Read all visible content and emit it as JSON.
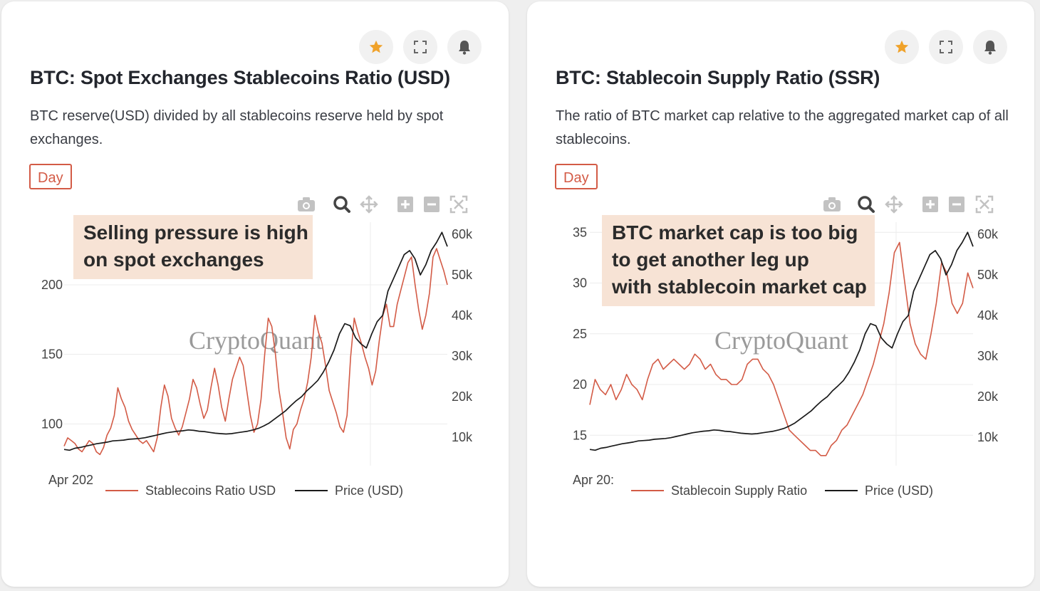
{
  "colors": {
    "accent": "#d35b46",
    "price": "#1a1a1a",
    "star": "#f0a22a",
    "annotation_bg": "#f7e3d5"
  },
  "icons": [
    "star-icon",
    "expand-icon",
    "bell-icon",
    "camera-icon",
    "zoom-icon",
    "pan-icon",
    "zoom-in-icon",
    "zoom-out-icon",
    "autoscale-icon"
  ],
  "cards": [
    {
      "title": "BTC: Spot Exchanges Stablecoins Ratio (USD)",
      "description": "BTC reserve(USD) divided by all stablecoins reserve held by spot exchanges.",
      "interval": "Day",
      "annotation": [
        "Selling pressure is high",
        "on spot exchanges"
      ],
      "watermark": "CryptoQuant",
      "x_first_tick": "Apr 202",
      "legend": [
        "Stablecoins Ratio USD",
        "Price (USD)"
      ],
      "y_left_ticks": [
        "100",
        "150",
        "200"
      ],
      "y_right_ticks": [
        "10k",
        "20k",
        "30k",
        "40k",
        "50k",
        "60k"
      ]
    },
    {
      "title": "BTC: Stablecoin Supply Ratio (SSR)",
      "description": "The ratio of BTC market cap relative to the aggregated market cap of all stablecoins.",
      "interval": "Day",
      "annotation": [
        "BTC market cap is too big",
        "to get another leg up",
        "with stablecoin market cap"
      ],
      "watermark": "CryptoQuant",
      "x_first_tick": "Apr 20:",
      "legend": [
        "Stablecoin Supply Ratio",
        "Price (USD)"
      ],
      "y_left_ticks": [
        "15",
        "20",
        "25",
        "30",
        "35"
      ],
      "y_right_ticks": [
        "10k",
        "20k",
        "30k",
        "40k",
        "50k",
        "60k"
      ]
    }
  ],
  "chart_data": [
    {
      "type": "line",
      "title": "BTC: Spot Exchanges Stablecoins Ratio (USD)",
      "x_first_tick": "Apr 202",
      "y_left": {
        "ticks": [
          100,
          150,
          200
        ],
        "range": [
          70,
          245
        ]
      },
      "y_right": {
        "ticks": [
          10000,
          20000,
          30000,
          40000,
          50000,
          60000
        ],
        "range": [
          3000,
          63000
        ]
      },
      "series": [
        {
          "name": "Stablecoins Ratio USD",
          "axis": "left",
          "color": "#d35b46",
          "values": [
            84,
            90,
            88,
            86,
            82,
            80,
            84,
            88,
            86,
            80,
            78,
            83,
            92,
            97,
            106,
            126,
            118,
            112,
            102,
            96,
            92,
            88,
            86,
            88,
            84,
            80,
            90,
            112,
            128,
            120,
            104,
            97,
            92,
            98,
            108,
            118,
            132,
            126,
            114,
            104,
            110,
            126,
            140,
            128,
            112,
            102,
            118,
            132,
            140,
            148,
            142,
            124,
            106,
            94,
            100,
            118,
            150,
            176,
            170,
            150,
            124,
            108,
            90,
            82,
            96,
            100,
            110,
            118,
            130,
            148,
            178,
            166,
            158,
            142,
            124,
            116,
            108,
            98,
            94,
            106,
            148,
            176,
            166,
            158,
            148,
            140,
            128,
            138,
            160,
            178,
            186,
            170,
            170,
            186,
            196,
            206,
            216,
            220,
            200,
            182,
            168,
            178,
            194,
            220,
            226,
            218,
            210,
            200
          ]
        },
        {
          "name": "Price (USD)",
          "axis": "right",
          "color": "#1a1a1a",
          "values": [
            7000,
            6800,
            7300,
            7500,
            7800,
            8100,
            8400,
            8600,
            8800,
            9100,
            9200,
            9300,
            9500,
            9600,
            9700,
            9900,
            10200,
            10500,
            10800,
            11100,
            11300,
            11500,
            11600,
            11800,
            11700,
            11500,
            11400,
            11200,
            11000,
            10900,
            10800,
            10900,
            11100,
            11300,
            11500,
            11800,
            12200,
            12800,
            13500,
            14500,
            15500,
            16500,
            17800,
            19000,
            20000,
            21500,
            22700,
            24000,
            26000,
            28500,
            31500,
            35500,
            38000,
            37500,
            34500,
            33000,
            32000,
            35500,
            38500,
            40000,
            46000,
            49000,
            52000,
            55000,
            56000,
            54000,
            50000,
            52500,
            56000,
            58000,
            60500,
            57000
          ]
        }
      ]
    },
    {
      "type": "line",
      "title": "BTC: Stablecoin Supply Ratio (SSR)",
      "x_first_tick": "Apr 20:",
      "y_left": {
        "ticks": [
          15,
          20,
          25,
          30,
          35
        ],
        "range": [
          12,
          36
        ]
      },
      "y_right": {
        "ticks": [
          10000,
          20000,
          30000,
          40000,
          50000,
          60000
        ],
        "range": [
          3000,
          63000
        ]
      },
      "series": [
        {
          "name": "Stablecoin Supply Ratio",
          "axis": "left",
          "color": "#d35b46",
          "values": [
            18,
            20.5,
            19.5,
            19,
            20,
            18.5,
            19.5,
            21,
            20,
            19.5,
            18.5,
            20.5,
            22,
            22.5,
            21.5,
            22,
            22.5,
            22,
            21.5,
            22,
            23,
            22.5,
            21.5,
            22,
            21,
            20.5,
            20.5,
            20,
            20,
            20.5,
            22,
            22.5,
            22.5,
            21.5,
            21,
            20,
            18.5,
            17,
            15.5,
            15,
            14.5,
            14,
            13.5,
            13.5,
            13,
            13,
            14,
            14.5,
            15.5,
            16,
            17,
            18,
            19,
            20.5,
            22,
            24,
            26,
            29,
            33,
            34,
            30,
            26,
            24,
            23,
            22.5,
            25,
            28,
            32,
            31,
            28,
            27,
            28,
            31,
            29.5
          ]
        },
        {
          "name": "Price (USD)",
          "axis": "right",
          "color": "#1a1a1a",
          "values": [
            7000,
            6800,
            7300,
            7500,
            7800,
            8100,
            8400,
            8600,
            8800,
            9100,
            9200,
            9300,
            9500,
            9600,
            9700,
            9900,
            10200,
            10500,
            10800,
            11100,
            11300,
            11500,
            11600,
            11800,
            11700,
            11500,
            11400,
            11200,
            11000,
            10900,
            10800,
            10900,
            11100,
            11300,
            11500,
            11800,
            12200,
            12800,
            13500,
            14500,
            15500,
            16500,
            17800,
            19000,
            20000,
            21500,
            22700,
            24000,
            26000,
            28500,
            31500,
            35500,
            38000,
            37500,
            34500,
            33000,
            32000,
            35500,
            38500,
            40000,
            46000,
            49000,
            52000,
            55000,
            56000,
            54000,
            50000,
            52500,
            56000,
            58000,
            60500,
            57000
          ]
        }
      ]
    }
  ]
}
